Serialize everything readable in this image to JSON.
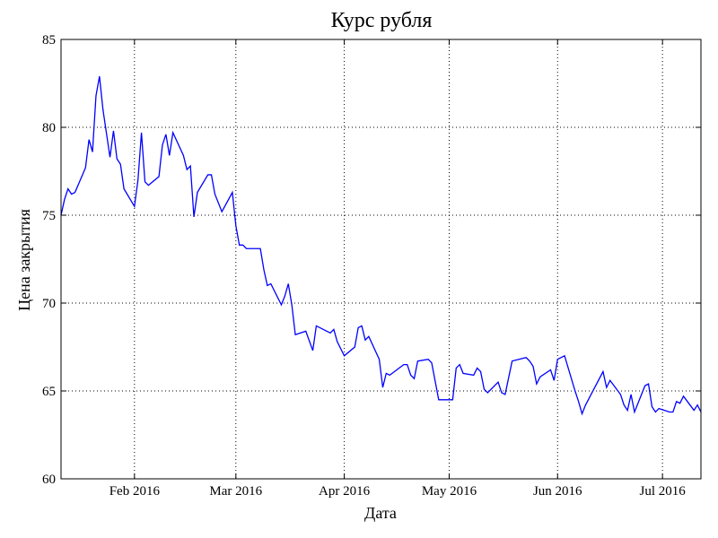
{
  "chart_data": {
    "type": "line",
    "title": "Курс рубля",
    "x_label": "Дата",
    "y_label": "Цена закрытия",
    "x": [
      11,
      12,
      13,
      14,
      15,
      18,
      19,
      20,
      21,
      22,
      23,
      25,
      26,
      27,
      28,
      29,
      32,
      33,
      34,
      35,
      36,
      39,
      40,
      41,
      42,
      43,
      46,
      47,
      48,
      49,
      50,
      53,
      54,
      55,
      57,
      60,
      61,
      62,
      63,
      64,
      68,
      69,
      70,
      71,
      74,
      75,
      76,
      77,
      78,
      81,
      83,
      84,
      88,
      89,
      90,
      92,
      95,
      96,
      97,
      98,
      99,
      102,
      103,
      104,
      105,
      109,
      110,
      111,
      112,
      113,
      116,
      117,
      119,
      123,
      124,
      125,
      126,
      129,
      130,
      131,
      132,
      133,
      136,
      137,
      138,
      140,
      144,
      145,
      146,
      147,
      148,
      151,
      152,
      153,
      155,
      158,
      159,
      160,
      161,
      166,
      167,
      168,
      171,
      172,
      173,
      174,
      175,
      178,
      179,
      180,
      181,
      182,
      185,
      186,
      187,
      188,
      189,
      192,
      193,
      194
    ],
    "values": [
      75.0,
      75.9,
      76.5,
      76.2,
      76.3,
      77.7,
      79.3,
      78.6,
      81.8,
      82.9,
      81.0,
      78.3,
      79.8,
      78.2,
      77.9,
      76.5,
      75.5,
      77.0,
      79.7,
      76.9,
      76.7,
      77.2,
      79.0,
      79.6,
      78.4,
      79.7,
      78.4,
      77.6,
      77.8,
      74.9,
      76.3,
      77.3,
      77.3,
      76.2,
      75.2,
      76.3,
      74.4,
      73.3,
      73.3,
      73.1,
      73.1,
      71.9,
      71.0,
      71.1,
      69.9,
      70.4,
      71.1,
      69.9,
      68.2,
      68.4,
      67.3,
      68.7,
      68.3,
      68.5,
      67.8,
      67.0,
      67.5,
      68.6,
      68.7,
      67.9,
      68.1,
      66.8,
      65.2,
      66.0,
      65.9,
      66.5,
      66.5,
      65.9,
      65.7,
      66.7,
      66.8,
      66.6,
      64.5,
      64.5,
      66.3,
      66.5,
      66.0,
      65.9,
      66.3,
      66.1,
      65.1,
      64.9,
      65.5,
      64.9,
      64.8,
      66.7,
      66.9,
      66.7,
      66.4,
      65.4,
      65.8,
      66.2,
      65.6,
      66.8,
      67.0,
      65.0,
      64.4,
      63.7,
      64.2,
      66.1,
      65.2,
      65.6,
      64.8,
      64.2,
      63.9,
      64.8,
      63.8,
      65.3,
      65.4,
      64.1,
      63.8,
      64.0,
      63.8,
      63.8,
      64.4,
      64.3,
      64.7,
      63.9,
      64.2,
      63.8
    ],
    "color": "#0000ff",
    "xlim": [
      11,
      194
    ],
    "xticks": [
      {
        "value": 32,
        "label": "Feb 2016"
      },
      {
        "value": 61,
        "label": "Mar 2016"
      },
      {
        "value": 92,
        "label": "Apr 2016"
      },
      {
        "value": 122,
        "label": "May 2016"
      },
      {
        "value": 153,
        "label": "Jun 2016"
      },
      {
        "value": 183,
        "label": "Jul 2016"
      }
    ],
    "ylim": [
      60,
      85
    ],
    "yticks": [
      60,
      65,
      70,
      75,
      80,
      85
    ],
    "grid": true
  }
}
